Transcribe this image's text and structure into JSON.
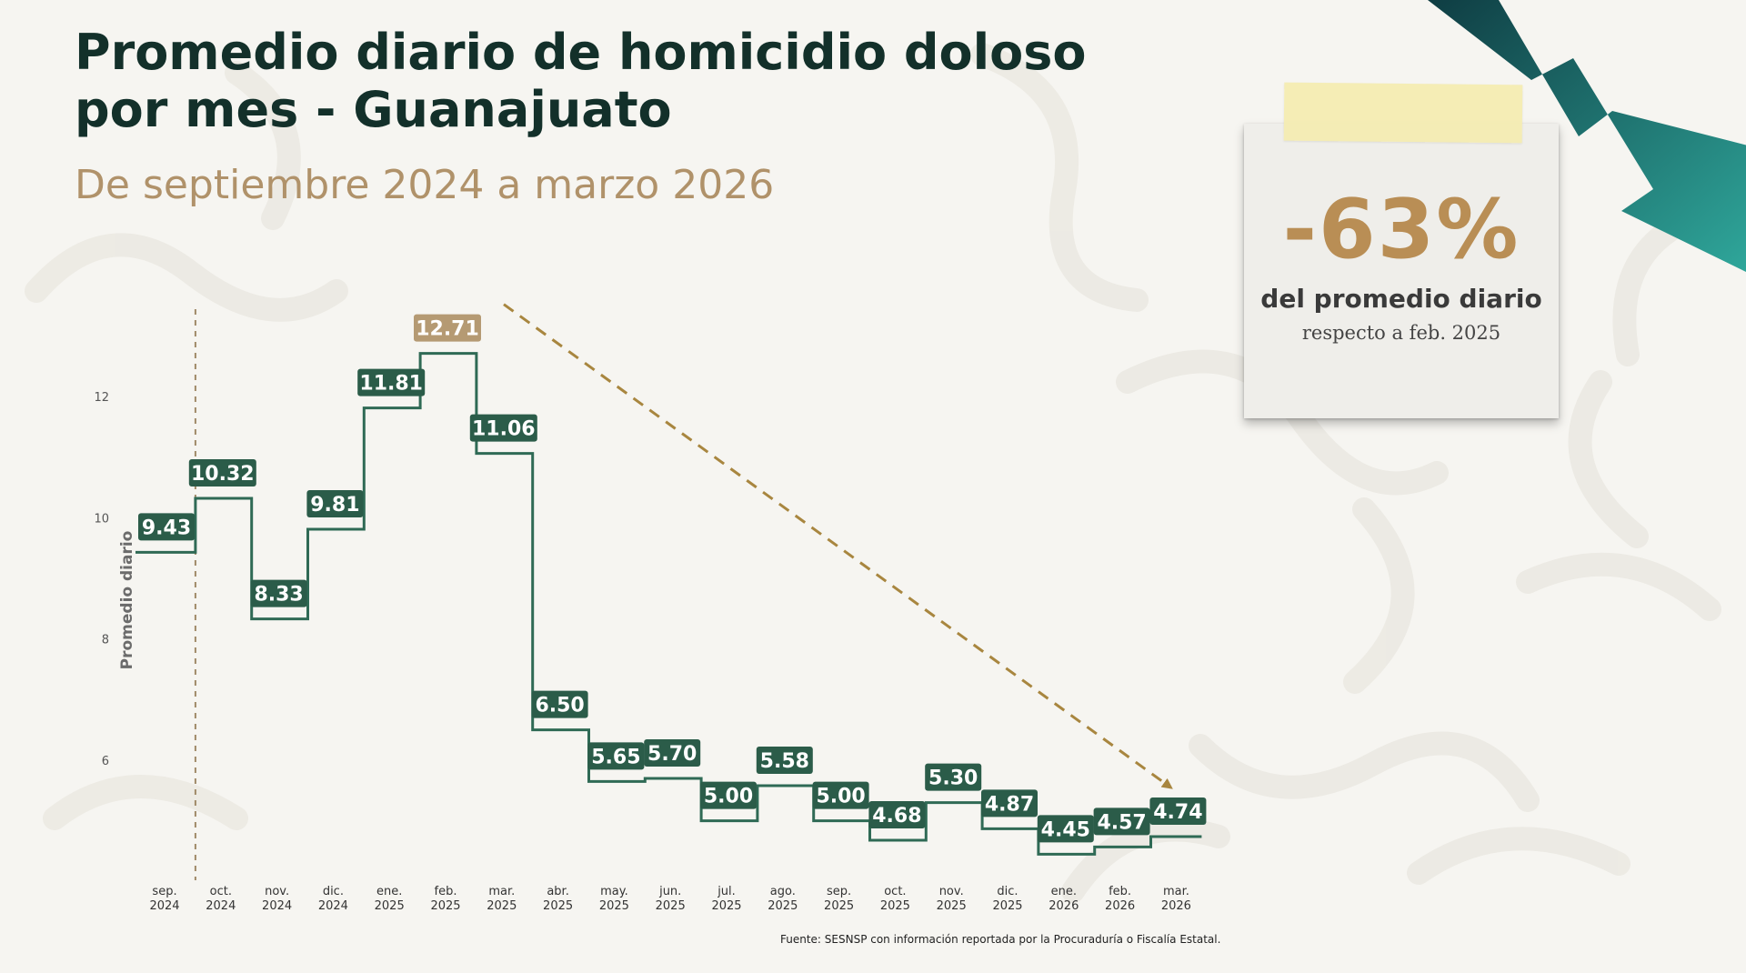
{
  "header": {
    "title_line1": "Promedio diario de homicidio doloso",
    "title_line2": "por mes - Guanajuato",
    "subtitle": "De septiembre 2024 a marzo 2026"
  },
  "callout": {
    "value": "-63%",
    "line1": "del promedio diario",
    "line2": "respecto a feb. 2025"
  },
  "source": "Fuente: SESNSP con información reportada por la Procuraduría o Fiscalía Estatal.",
  "colors": {
    "line": "#2f6a55",
    "label_bg": "#2b5c49",
    "peak_label_bg": "#b59a73",
    "accent": "#b0926a",
    "title": "#13302a",
    "trend_arrow": "#a8863f"
  },
  "chart_data": {
    "type": "line",
    "style": "step",
    "xlabel": "",
    "ylabel": "Promedio diario",
    "ylim": [
      4,
      13.5
    ],
    "yticks": [
      6,
      8,
      10,
      12
    ],
    "grid": false,
    "categories": [
      [
        "sep.",
        "2024"
      ],
      [
        "oct.",
        "2024"
      ],
      [
        "nov.",
        "2024"
      ],
      [
        "dic.",
        "2024"
      ],
      [
        "ene.",
        "2025"
      ],
      [
        "feb.",
        "2025"
      ],
      [
        "mar.",
        "2025"
      ],
      [
        "abr.",
        "2025"
      ],
      [
        "may.",
        "2025"
      ],
      [
        "jun.",
        "2025"
      ],
      [
        "jul.",
        "2025"
      ],
      [
        "ago.",
        "2025"
      ],
      [
        "sep.",
        "2025"
      ],
      [
        "oct.",
        "2025"
      ],
      [
        "nov.",
        "2025"
      ],
      [
        "dic.",
        "2025"
      ],
      [
        "ene.",
        "2026"
      ],
      [
        "feb.",
        "2026"
      ],
      [
        "mar.",
        "2026"
      ]
    ],
    "values": [
      9.43,
      10.32,
      8.33,
      9.81,
      11.81,
      12.71,
      11.06,
      6.5,
      5.65,
      5.7,
      5.0,
      5.58,
      5.0,
      4.68,
      5.3,
      4.87,
      4.45,
      4.57,
      4.74
    ],
    "labels": [
      "9.43",
      "10.32",
      "8.33",
      "9.81",
      "11.81",
      "12.71",
      "11.06",
      "6.50",
      "5.65",
      "5.70",
      "5.00",
      "5.58",
      "5.00",
      "4.68",
      "5.30",
      "4.87",
      "4.45",
      "4.57",
      "4.74"
    ],
    "highlight_index": 5,
    "annotations": {
      "dashed_vertical_between": [
        0,
        1
      ],
      "trend_arrow_from_index": 5,
      "trend_arrow_to_index": 18
    }
  }
}
